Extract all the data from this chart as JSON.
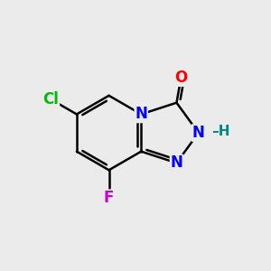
{
  "background_color": "#EBEBEB",
  "bond_color": "#000000",
  "bond_width": 1.8,
  "atom_colors": {
    "C": "#000000",
    "N": "#0000FF",
    "O": "#FF0000",
    "Cl": "#00BB00",
    "F": "#CC00CC",
    "H": "#008888"
  },
  "font_size": 12,
  "font_size_h": 11
}
